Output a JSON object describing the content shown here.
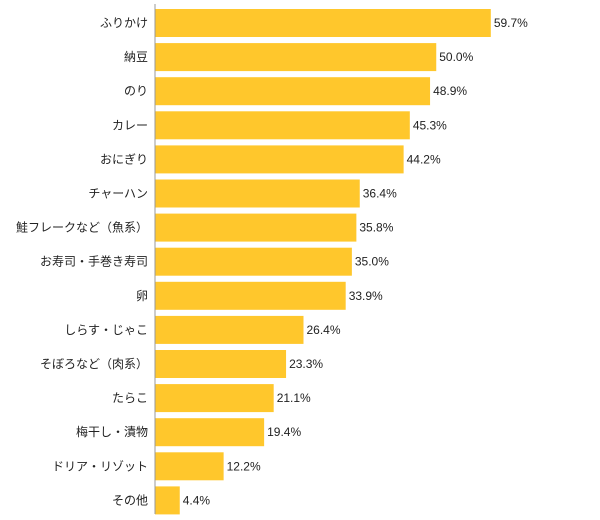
{
  "chart_data": {
    "type": "bar",
    "orientation": "horizontal",
    "categories": [
      "ふりかけ",
      "納豆",
      "のり",
      "カレー",
      "おにぎり",
      "チャーハン",
      "鮭フレークなど（魚系）",
      "お寿司・手巻き寿司",
      "卵",
      "しらす・じゃこ",
      "そぼろなど（肉系）",
      "たらこ",
      "梅干し・漬物",
      "ドリア・リゾット",
      "その他"
    ],
    "values": [
      59.7,
      50.0,
      48.9,
      45.3,
      44.2,
      36.4,
      35.8,
      35.0,
      33.9,
      26.4,
      23.3,
      21.1,
      19.4,
      12.2,
      4.4
    ],
    "value_labels": [
      "59.7%",
      "50.0%",
      "48.9%",
      "45.3%",
      "44.2%",
      "36.4%",
      "35.8%",
      "35.0%",
      "33.9%",
      "26.4%",
      "23.3%",
      "21.1%",
      "19.4%",
      "12.2%",
      "4.4%"
    ],
    "xlim": [
      0,
      100
    ],
    "grid": false,
    "legend": "none",
    "title": "",
    "xlabel": "",
    "ylabel": "",
    "colors": {
      "bar": "#ffc72c",
      "axis": "#999999",
      "text": "#222222"
    }
  }
}
